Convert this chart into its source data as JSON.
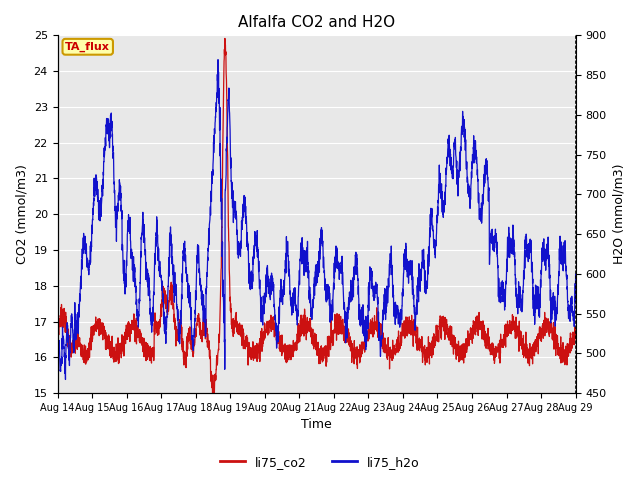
{
  "title": "Alfalfa CO2 and H2O",
  "xlabel": "Time",
  "ylabel_left": "CO2 (mmol/m3)",
  "ylabel_right": "H2O (mmol/m3)",
  "annotation_text": "TA_flux",
  "annotation_bg": "#ffffaa",
  "annotation_edge": "#cc9900",
  "annotation_text_color": "#cc0000",
  "xlim": [
    0,
    15
  ],
  "ylim_left": [
    15.0,
    25.0
  ],
  "ylim_right": [
    450,
    900
  ],
  "yticks_left": [
    15.0,
    16.0,
    17.0,
    18.0,
    19.0,
    20.0,
    21.0,
    22.0,
    23.0,
    24.0,
    25.0
  ],
  "yticks_right": [
    450,
    500,
    550,
    600,
    650,
    700,
    750,
    800,
    850,
    900
  ],
  "xtick_labels": [
    "Aug 14",
    "Aug 15",
    "Aug 16",
    "Aug 17",
    "Aug 18",
    "Aug 19",
    "Aug 20",
    "Aug 21",
    "Aug 22",
    "Aug 23",
    "Aug 24",
    "Aug 25",
    "Aug 26",
    "Aug 27",
    "Aug 28",
    "Aug 29"
  ],
  "color_co2": "#cc1111",
  "color_h2o": "#1111cc",
  "legend_co2": "li75_co2",
  "legend_h2o": "li75_h2o",
  "bg_color": "#e8e8e8",
  "line_width": 0.9,
  "figsize": [
    6.4,
    4.8
  ],
  "dpi": 100
}
